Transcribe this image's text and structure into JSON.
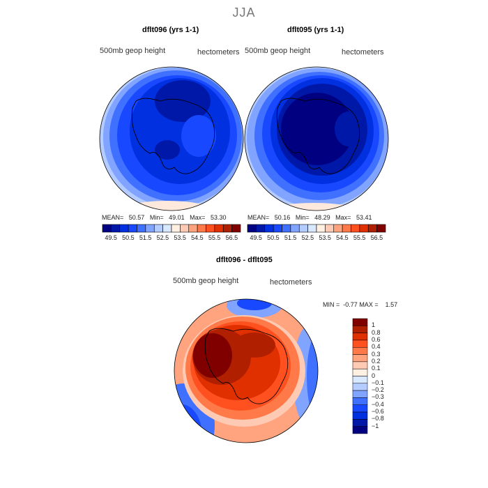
{
  "title": "JJA",
  "panels": [
    {
      "name": "dflt096",
      "title": "dflt096 (yrs 1-1)",
      "field": "500mb geop height",
      "units": "hectometers",
      "stats": {
        "mean_label": "MEAN=",
        "mean": "50.57",
        "min_label": "Min=",
        "min": "49.01",
        "max_label": "Max=",
        "max": "53.30"
      }
    },
    {
      "name": "dflt095",
      "title": "dflt095 (yrs 1-1)",
      "field": "500mb geop height",
      "units": "hectometers",
      "stats": {
        "mean_label": "MEAN=",
        "mean": "50.16",
        "min_label": "Min=",
        "min": "48.29",
        "max_label": "Max=",
        "max": "53.41"
      }
    }
  ],
  "colorbar_labels": [
    "49.5",
    "50.5",
    "51.5",
    "52.5",
    "53.5",
    "54.5",
    "55.5",
    "56.5"
  ],
  "colorbar_colors": [
    "#000080",
    "#0018a8",
    "#0030e0",
    "#1848ff",
    "#4070ff",
    "#80a4ff",
    "#b4ccff",
    "#d8e8ff",
    "#fff0e2",
    "#ffcab4",
    "#ffa47e",
    "#ff7a48",
    "#ff5020",
    "#e03000",
    "#b02000",
    "#800000"
  ],
  "diff": {
    "title": "dflt096 - dflt095",
    "field": "500mb geop height",
    "units": "hectometers",
    "min_label": "MIN =",
    "min": "-0.77",
    "max_label": "MAX =",
    "max": "1.57",
    "levels": [
      "1",
      "0.8",
      "0.6",
      "0.4",
      "0.3",
      "0.2",
      "0.1",
      "0",
      "−0.1",
      "−0.2",
      "−0.3",
      "−0.4",
      "−0.6",
      "−0.8",
      "−1"
    ]
  }
}
